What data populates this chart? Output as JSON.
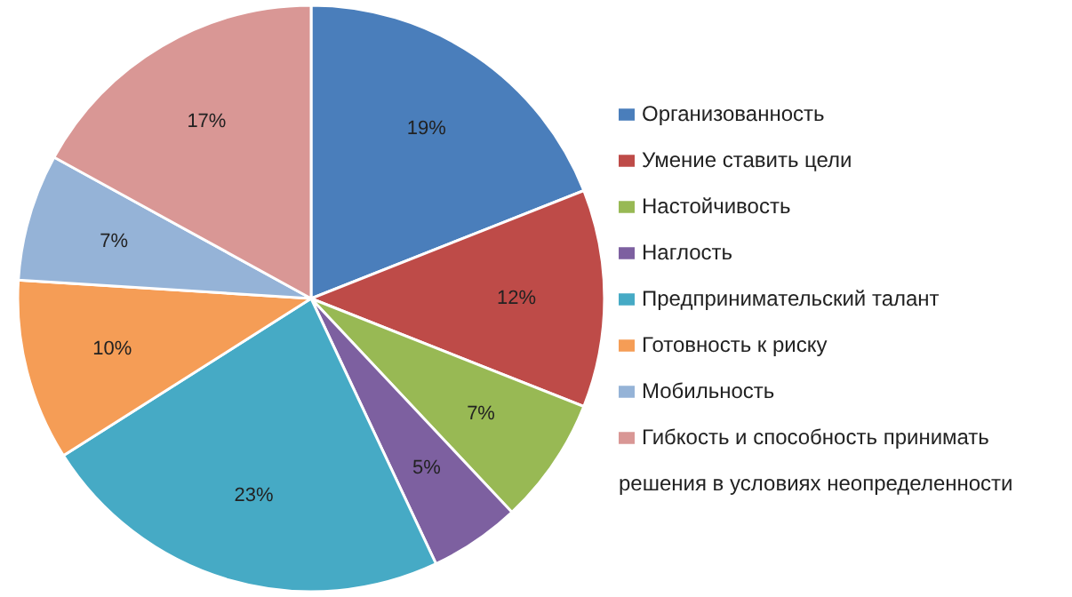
{
  "chart_data": {
    "type": "pie",
    "categories": [
      "Организованность",
      "Умение ставить цели",
      "Настойчивость",
      "Наглость",
      "Предпринимательский талант",
      "Готовность к риску",
      "Мобильность",
      "Гибкость и способность принимать решения в условиях неопределенности"
    ],
    "values": [
      19,
      12,
      7,
      5,
      23,
      10,
      7,
      17
    ],
    "value_labels": [
      "19%",
      "12%",
      "7%",
      "5%",
      "23%",
      "10%",
      "7%",
      "17%"
    ],
    "colors": [
      "#4a7ebb",
      "#be4b48",
      "#98b954",
      "#7d60a0",
      "#46aac5",
      "#f59d56",
      "#95b3d7",
      "#d99795"
    ],
    "legend": "right"
  }
}
